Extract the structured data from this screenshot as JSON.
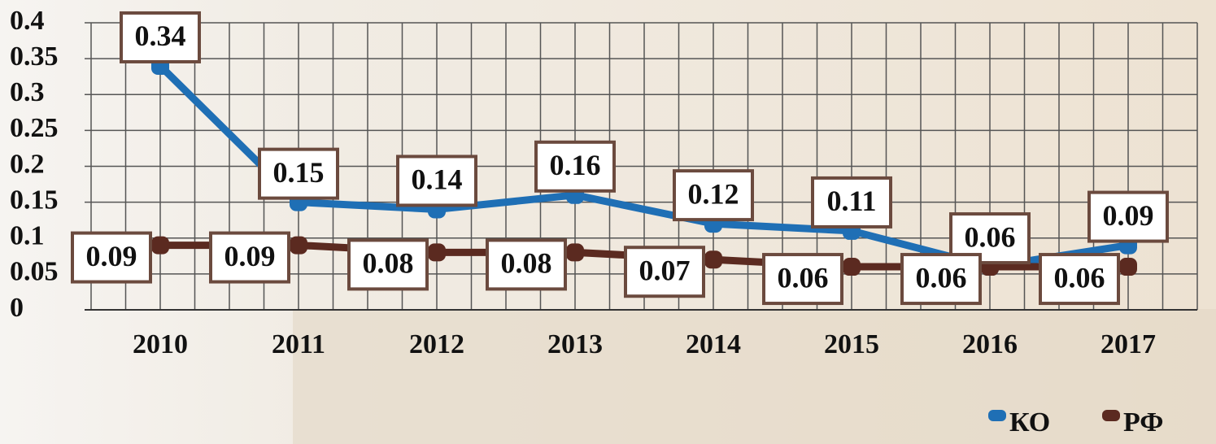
{
  "chart_data": {
    "type": "line",
    "categories": [
      "2010",
      "2011",
      "2012",
      "2013",
      "2014",
      "2015",
      "2016",
      "2017"
    ],
    "series": [
      {
        "name": "КО",
        "color": "#1f6fb5",
        "values": [
          0.34,
          0.15,
          0.14,
          0.16,
          0.12,
          0.11,
          0.06,
          0.09
        ]
      },
      {
        "name": "РФ",
        "color": "#5b2a20",
        "values": [
          0.09,
          0.09,
          0.08,
          0.08,
          0.07,
          0.06,
          0.06,
          0.06
        ]
      }
    ],
    "ylim": [
      0,
      0.4
    ],
    "yticks": [
      0,
      0.05,
      0.1,
      0.15,
      0.2,
      0.25,
      0.3,
      0.35,
      0.4
    ],
    "grid": true,
    "legend": "lower right"
  }
}
